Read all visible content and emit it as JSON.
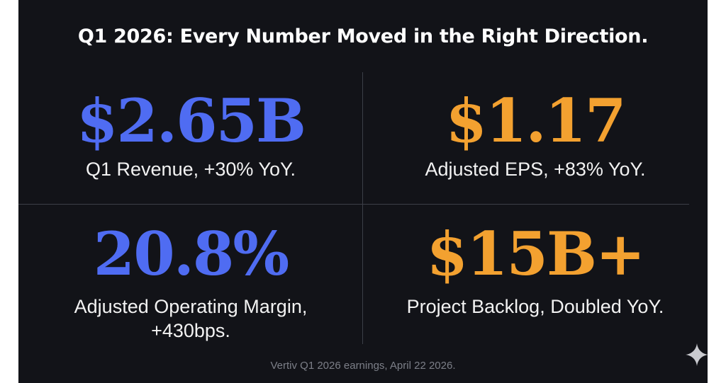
{
  "headline": "Q1 2026: Every Number Moved in the Right Direction.",
  "metrics": [
    {
      "value": "$2.65B",
      "caption": "Q1 Revenue, +30% YoY."
    },
    {
      "value": "$1.17",
      "caption": "Adjusted EPS, +83% YoY."
    },
    {
      "value": "20.8%",
      "caption_line1": "Adjusted Operating Margin,",
      "caption_line2": "+430bps."
    },
    {
      "value": "$15B+",
      "caption": "Project Backlog, Doubled YoY."
    }
  ],
  "footer": "Vertiv Q1 2026 earnings, April 22 2026.",
  "colors": {
    "accent_blue": "#4f6cf2",
    "accent_orange": "#f3a130",
    "background": "#121318"
  },
  "icons": {
    "corner": "sparkle-icon"
  }
}
